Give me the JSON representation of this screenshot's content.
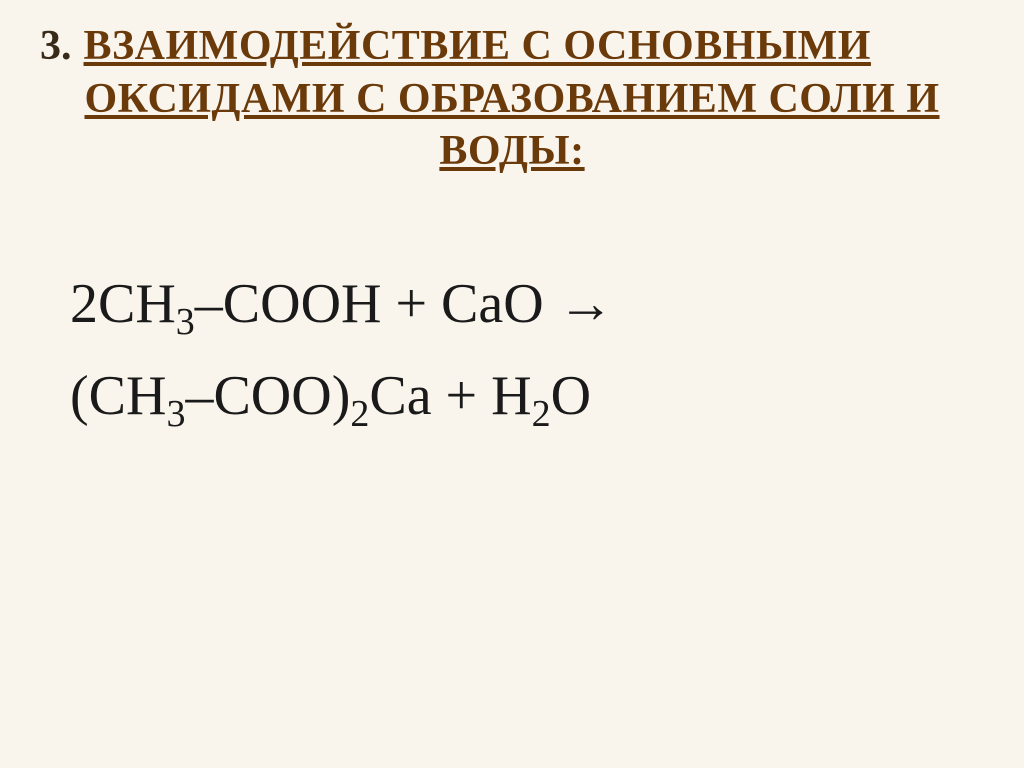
{
  "slide": {
    "number": "3.",
    "title_highlight": "Взаимодействие с основными",
    "title_line2": "оксидами с образованием соли и",
    "title_line3": "воды:",
    "title_color": "#6b3a0a",
    "title_fontsize": 42,
    "background_color": "#f9f5ed"
  },
  "equation": {
    "line1_html": "2CH<sub>3</sub>–COOH + CaO →",
    "line2_html": "(CH<sub>3</sub>–COO)<sub>2</sub>Ca + H<sub>2</sub>O",
    "fontsize": 56,
    "text_color": "#1a1a1a",
    "font_family": "Georgia, Times New Roman, serif"
  }
}
